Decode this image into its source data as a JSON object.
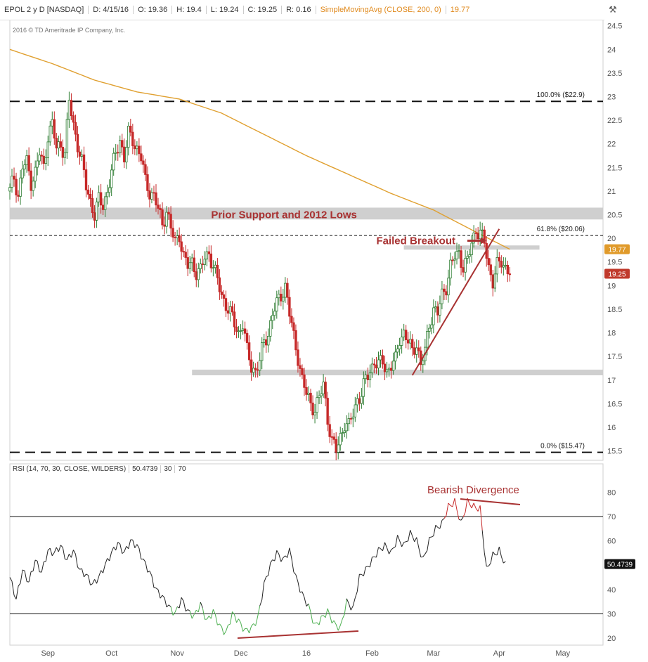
{
  "header": {
    "symbol": "EPOL 2 y D [NASDAQ]",
    "date": "D: 4/15/16",
    "open": "O: 19.36",
    "high": "H: 19.4",
    "low": "L: 19.24",
    "close": "C: 19.25",
    "range": "R: 0.16",
    "sma_label": "SimpleMovingAvg (CLOSE, 200, 0)",
    "sma_value": "19.77"
  },
  "copyright": "2016 © TD Ameritrade IP Company, Inc.",
  "rsi_header": {
    "label": "RSI (14, 70, 30, CLOSE, WILDERS)",
    "value": "50.4739",
    "low": "30",
    "high": "70"
  },
  "colors": {
    "up": "#2e7d32",
    "down": "#c62828",
    "sma": "#e0a030",
    "annotation": "#a83232",
    "rsi_line": "#222222",
    "rsi_oversold": "#4caf50",
    "rsi_overbought": "#c62828"
  },
  "chart_data": [
    {
      "type": "candlestick",
      "ylim": [
        15.3,
        24.6
      ],
      "yticks": [
        15.5,
        16,
        16.5,
        17,
        17.5,
        18,
        18.5,
        19,
        19.5,
        20,
        20.5,
        21,
        21.5,
        22,
        22.5,
        23,
        23.5,
        24,
        24.5
      ],
      "x_months": [
        {
          "label": "Sep",
          "day": 18
        },
        {
          "label": "Oct",
          "day": 48
        },
        {
          "label": "Nov",
          "day": 79
        },
        {
          "label": "Dec",
          "day": 109
        },
        {
          "label": "16",
          "day": 140
        },
        {
          "label": "Feb",
          "day": 171
        },
        {
          "label": "Mar",
          "day": 200
        },
        {
          "label": "Apr",
          "day": 231
        },
        {
          "label": "May",
          "day": 261
        }
      ],
      "xlim": [
        0,
        280
      ],
      "price_key": [
        [
          0,
          21.0
        ],
        [
          2,
          21.3
        ],
        [
          4,
          20.9
        ],
        [
          6,
          21.5
        ],
        [
          8,
          21.6
        ],
        [
          10,
          21.2
        ],
        [
          12,
          21.4
        ],
        [
          14,
          21.8
        ],
        [
          16,
          21.5
        ],
        [
          18,
          22.2
        ],
        [
          20,
          22.4
        ],
        [
          22,
          21.9
        ],
        [
          24,
          22.0
        ],
        [
          26,
          21.8
        ],
        [
          28,
          22.9
        ],
        [
          30,
          22.4
        ],
        [
          32,
          22.0
        ],
        [
          34,
          21.6
        ],
        [
          36,
          21.1
        ],
        [
          38,
          20.8
        ],
        [
          40,
          20.5
        ],
        [
          42,
          20.8
        ],
        [
          44,
          20.7
        ],
        [
          46,
          21.0
        ],
        [
          48,
          21.4
        ],
        [
          50,
          21.8
        ],
        [
          52,
          22.1
        ],
        [
          54,
          21.7
        ],
        [
          56,
          22.2
        ],
        [
          58,
          22.1
        ],
        [
          60,
          21.9
        ],
        [
          62,
          21.7
        ],
        [
          64,
          21.2
        ],
        [
          66,
          21.0
        ],
        [
          68,
          20.9
        ],
        [
          70,
          20.6
        ],
        [
          72,
          20.3
        ],
        [
          74,
          20.6
        ],
        [
          76,
          20.2
        ],
        [
          78,
          19.9
        ],
        [
          80,
          20.1
        ],
        [
          82,
          19.6
        ],
        [
          84,
          19.4
        ],
        [
          86,
          19.5
        ],
        [
          88,
          19.3
        ],
        [
          90,
          19.3
        ],
        [
          92,
          19.6
        ],
        [
          94,
          19.7
        ],
        [
          96,
          19.4
        ],
        [
          98,
          19.1
        ],
        [
          100,
          18.8
        ],
        [
          102,
          18.6
        ],
        [
          104,
          18.4
        ],
        [
          106,
          18.2
        ],
        [
          108,
          18.0
        ],
        [
          110,
          18.2
        ],
        [
          112,
          17.6
        ],
        [
          114,
          17.3
        ],
        [
          116,
          17.2
        ],
        [
          118,
          17.4
        ],
        [
          120,
          17.8
        ],
        [
          122,
          18.0
        ],
        [
          124,
          18.4
        ],
        [
          126,
          18.6
        ],
        [
          128,
          18.8
        ],
        [
          130,
          19.0
        ],
        [
          132,
          18.4
        ],
        [
          134,
          17.9
        ],
        [
          136,
          17.5
        ],
        [
          138,
          17.0
        ],
        [
          140,
          16.7
        ],
        [
          142,
          16.5
        ],
        [
          144,
          16.4
        ],
        [
          146,
          16.6
        ],
        [
          148,
          16.9
        ],
        [
          150,
          16.2
        ],
        [
          152,
          15.7
        ],
        [
          154,
          15.5
        ],
        [
          156,
          15.8
        ],
        [
          158,
          16.1
        ],
        [
          160,
          16.0
        ],
        [
          162,
          16.3
        ],
        [
          164,
          16.6
        ],
        [
          166,
          16.7
        ],
        [
          168,
          17.0
        ],
        [
          170,
          17.2
        ],
        [
          172,
          17.4
        ],
        [
          174,
          17.3
        ],
        [
          176,
          17.4
        ],
        [
          178,
          17.2
        ],
        [
          180,
          17.3
        ],
        [
          182,
          17.4
        ],
        [
          184,
          17.9
        ],
        [
          186,
          18.0
        ],
        [
          188,
          17.8
        ],
        [
          190,
          17.6
        ],
        [
          192,
          17.8
        ],
        [
          194,
          17.3
        ],
        [
          196,
          17.6
        ],
        [
          198,
          18.2
        ],
        [
          200,
          18.5
        ],
        [
          202,
          18.4
        ],
        [
          204,
          18.8
        ],
        [
          206,
          19.0
        ],
        [
          208,
          19.4
        ],
        [
          210,
          19.6
        ],
        [
          212,
          19.7
        ],
        [
          214,
          19.4
        ],
        [
          216,
          19.5
        ],
        [
          218,
          19.9
        ],
        [
          220,
          20.2
        ],
        [
          222,
          20.1
        ],
        [
          224,
          19.9
        ],
        [
          226,
          19.4
        ],
        [
          228,
          19.1
        ],
        [
          230,
          19.4
        ],
        [
          232,
          19.5
        ],
        [
          234,
          19.4
        ],
        [
          236,
          19.3
        ]
      ],
      "sma_key": [
        [
          0,
          24.0
        ],
        [
          20,
          23.7
        ],
        [
          40,
          23.35
        ],
        [
          60,
          23.1
        ],
        [
          80,
          22.95
        ],
        [
          100,
          22.65
        ],
        [
          120,
          22.2
        ],
        [
          140,
          21.75
        ],
        [
          160,
          21.35
        ],
        [
          180,
          20.95
        ],
        [
          200,
          20.6
        ],
        [
          215,
          20.25
        ],
        [
          228,
          19.95
        ],
        [
          236,
          19.77
        ]
      ],
      "horizontal_levels": [
        {
          "value": 22.9,
          "style": "long-dash",
          "label": "100.0%  ($22.9)"
        },
        {
          "value": 20.06,
          "style": "short-dash",
          "label": "61.8%  ($20.06)"
        },
        {
          "value": 15.47,
          "style": "long-dash",
          "label": "0.0%  ($15.47)"
        }
      ],
      "bands": [
        {
          "from": 20.4,
          "to": 20.65,
          "x0": 0,
          "x1": 280
        },
        {
          "from": 17.1,
          "to": 17.22,
          "x0": 86,
          "x1": 280
        },
        {
          "from": 19.77,
          "to": 19.85,
          "x0": 186,
          "x1": 250
        }
      ],
      "trendline": {
        "x0": 190,
        "y0": 17.1,
        "x1": 231,
        "y1": 20.2
      },
      "annotations": [
        {
          "text": "Prior Support and 2012 Lows",
          "x": 95,
          "y": 20.5
        },
        {
          "text": "Failed Breakout",
          "x": 173,
          "y": 19.95
        }
      ],
      "price_labels": [
        {
          "value": "19.77",
          "y": 19.77,
          "kind": "sma"
        },
        {
          "value": "19.25",
          "y": 19.25,
          "kind": "close"
        }
      ]
    },
    {
      "type": "line",
      "title": "RSI (14, 70, 30, CLOSE, WILDERS)",
      "ylim": [
        18,
        85
      ],
      "yticks": [
        20,
        30,
        40,
        50,
        60,
        70,
        80
      ],
      "reference_lines": [
        30,
        70
      ],
      "last_value": "50.4739",
      "rsi_key": [
        [
          0,
          45
        ],
        [
          3,
          36
        ],
        [
          6,
          48
        ],
        [
          9,
          43
        ],
        [
          12,
          52
        ],
        [
          15,
          47
        ],
        [
          18,
          56
        ],
        [
          21,
          55
        ],
        [
          24,
          58
        ],
        [
          27,
          52
        ],
        [
          30,
          56
        ],
        [
          33,
          48
        ],
        [
          36,
          46
        ],
        [
          39,
          42
        ],
        [
          42,
          45
        ],
        [
          45,
          50
        ],
        [
          48,
          55
        ],
        [
          51,
          59
        ],
        [
          54,
          55
        ],
        [
          57,
          60
        ],
        [
          60,
          58
        ],
        [
          63,
          52
        ],
        [
          66,
          47
        ],
        [
          69,
          40
        ],
        [
          72,
          37
        ],
        [
          75,
          33
        ],
        [
          78,
          30
        ],
        [
          81,
          36
        ],
        [
          84,
          31
        ],
        [
          87,
          29
        ],
        [
          90,
          34
        ],
        [
          93,
          27
        ],
        [
          96,
          31
        ],
        [
          99,
          25
        ],
        [
          102,
          22
        ],
        [
          105,
          30
        ],
        [
          108,
          27
        ],
        [
          111,
          23
        ],
        [
          114,
          24
        ],
        [
          117,
          28
        ],
        [
          120,
          42
        ],
        [
          123,
          50
        ],
        [
          126,
          55
        ],
        [
          129,
          52
        ],
        [
          132,
          56
        ],
        [
          135,
          45
        ],
        [
          138,
          38
        ],
        [
          141,
          33
        ],
        [
          144,
          25
        ],
        [
          147,
          28
        ],
        [
          150,
          31
        ],
        [
          153,
          26
        ],
        [
          156,
          24
        ],
        [
          159,
          35
        ],
        [
          162,
          32
        ],
        [
          165,
          45
        ],
        [
          168,
          48
        ],
        [
          171,
          52
        ],
        [
          174,
          56
        ],
        [
          177,
          58
        ],
        [
          180,
          55
        ],
        [
          183,
          61
        ],
        [
          186,
          58
        ],
        [
          189,
          63
        ],
        [
          192,
          60
        ],
        [
          195,
          52
        ],
        [
          198,
          60
        ],
        [
          201,
          65
        ],
        [
          204,
          67
        ],
        [
          207,
          74
        ],
        [
          210,
          76
        ],
        [
          213,
          67
        ],
        [
          216,
          76
        ],
        [
          219,
          74
        ],
        [
          222,
          73
        ],
        [
          225,
          48
        ],
        [
          228,
          54
        ],
        [
          231,
          56
        ],
        [
          234,
          50
        ]
      ]
    }
  ]
}
